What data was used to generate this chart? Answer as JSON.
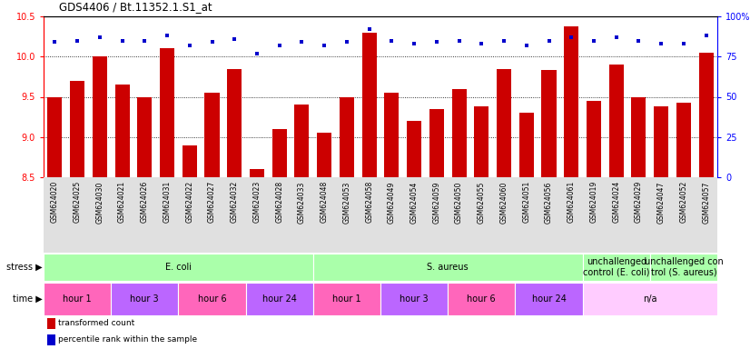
{
  "title": "GDS4406 / Bt.11352.1.S1_at",
  "samples": [
    "GSM624020",
    "GSM624025",
    "GSM624030",
    "GSM624021",
    "GSM624026",
    "GSM624031",
    "GSM624022",
    "GSM624027",
    "GSM624032",
    "GSM624023",
    "GSM624028",
    "GSM624033",
    "GSM624048",
    "GSM624053",
    "GSM624058",
    "GSM624049",
    "GSM624054",
    "GSM624059",
    "GSM624050",
    "GSM624055",
    "GSM624060",
    "GSM624051",
    "GSM624056",
    "GSM624061",
    "GSM624019",
    "GSM624024",
    "GSM624029",
    "GSM624047",
    "GSM624052",
    "GSM624057"
  ],
  "bar_values": [
    9.5,
    9.7,
    10.0,
    9.65,
    9.5,
    10.1,
    8.9,
    9.55,
    9.85,
    8.6,
    9.1,
    9.4,
    9.05,
    9.5,
    10.3,
    9.55,
    9.2,
    9.35,
    9.6,
    9.38,
    9.85,
    9.3,
    9.83,
    10.38,
    9.45,
    9.9,
    9.5,
    9.38,
    9.43,
    10.05
  ],
  "percentile_values": [
    84,
    85,
    87,
    85,
    85,
    88,
    82,
    84,
    86,
    77,
    82,
    84,
    82,
    84,
    92,
    85,
    83,
    84,
    85,
    83,
    85,
    82,
    85,
    87,
    85,
    87,
    85,
    83,
    83,
    88
  ],
  "bar_color": "#cc0000",
  "dot_color": "#0000cc",
  "ylim_left": [
    8.5,
    10.5
  ],
  "ylim_right": [
    0,
    100
  ],
  "yticks_left": [
    8.5,
    9.0,
    9.5,
    10.0,
    10.5
  ],
  "yticks_right": [
    0,
    25,
    50,
    75,
    100
  ],
  "ytick_labels_right": [
    "0",
    "25",
    "50",
    "75",
    "100%"
  ],
  "stress_groups": [
    {
      "label": "E. coli",
      "start": 0,
      "end": 12,
      "color": "#aaffaa"
    },
    {
      "label": "S. aureus",
      "start": 12,
      "end": 24,
      "color": "#aaffaa"
    },
    {
      "label": "unchallenged\ncontrol (E. coli)",
      "start": 24,
      "end": 27,
      "color": "#aaffaa"
    },
    {
      "label": "unchallenged con\ntrol (S. aureus)",
      "start": 27,
      "end": 30,
      "color": "#aaffaa"
    }
  ],
  "time_groups": [
    {
      "label": "hour 1",
      "start": 0,
      "end": 3,
      "color": "#ff66bb"
    },
    {
      "label": "hour 3",
      "start": 3,
      "end": 6,
      "color": "#bb66ff"
    },
    {
      "label": "hour 6",
      "start": 6,
      "end": 9,
      "color": "#ff66bb"
    },
    {
      "label": "hour 24",
      "start": 9,
      "end": 12,
      "color": "#bb66ff"
    },
    {
      "label": "hour 1",
      "start": 12,
      "end": 15,
      "color": "#ff66bb"
    },
    {
      "label": "hour 3",
      "start": 15,
      "end": 18,
      "color": "#bb66ff"
    },
    {
      "label": "hour 6",
      "start": 18,
      "end": 21,
      "color": "#ff66bb"
    },
    {
      "label": "hour 24",
      "start": 21,
      "end": 24,
      "color": "#bb66ff"
    },
    {
      "label": "n/a",
      "start": 24,
      "end": 30,
      "color": "#ffccff"
    }
  ],
  "legend_bar_label": "transformed count",
  "legend_dot_label": "percentile rank within the sample"
}
